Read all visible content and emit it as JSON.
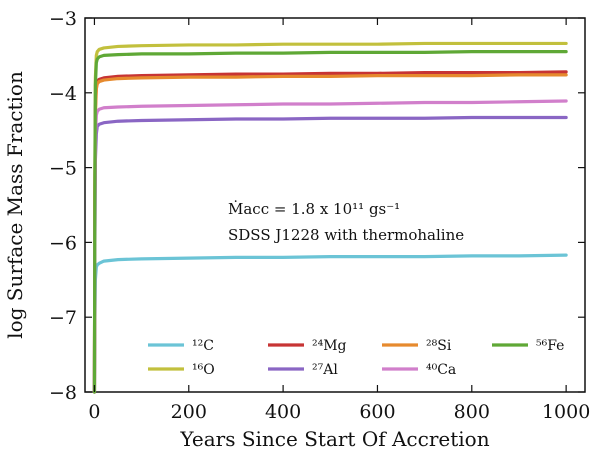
{
  "chart_data": {
    "type": "line",
    "xlabel": "Years Since Start Of Accretion",
    "ylabel": "log Surface Mass Fraction",
    "xlim": [
      -20,
      1040
    ],
    "ylim": [
      -8,
      -3
    ],
    "xticks": [
      0,
      200,
      400,
      600,
      800,
      1000
    ],
    "yticks": [
      -8,
      -7,
      -6,
      -5,
      -4,
      -3
    ],
    "xtick_labels": [
      "0",
      "200",
      "400",
      "600",
      "800",
      "1000"
    ],
    "ytick_labels": [
      "−8",
      "−7",
      "−6",
      "−5",
      "−4",
      "−3"
    ],
    "grid": false,
    "legend_position": "bottom",
    "annotations": [
      "Ṁacc = 1.8 x 10¹¹ gs⁻¹",
      "SDSS J1228 with thermohaline"
    ],
    "x": [
      0,
      1,
      2,
      4,
      6,
      10,
      20,
      50,
      100,
      200,
      300,
      400,
      500,
      600,
      700,
      800,
      900,
      1000
    ],
    "series": [
      {
        "name": "¹²C",
        "color": "#6bc4d6",
        "values": [
          -8.0,
          -7.0,
          -6.5,
          -6.33,
          -6.3,
          -6.28,
          -6.25,
          -6.23,
          -6.22,
          -6.21,
          -6.2,
          -6.2,
          -6.19,
          -6.19,
          -6.19,
          -6.18,
          -6.18,
          -6.17
        ]
      },
      {
        "name": "¹⁶O",
        "color": "#c2c03d",
        "values": [
          -8.0,
          -5.0,
          -3.8,
          -3.5,
          -3.45,
          -3.42,
          -3.4,
          -3.38,
          -3.37,
          -3.36,
          -3.36,
          -3.35,
          -3.35,
          -3.35,
          -3.34,
          -3.34,
          -3.34,
          -3.34
        ]
      },
      {
        "name": "²⁴Mg",
        "color": "#c73434",
        "values": [
          -8.0,
          -5.3,
          -4.2,
          -3.9,
          -3.85,
          -3.82,
          -3.8,
          -3.78,
          -3.77,
          -3.76,
          -3.75,
          -3.75,
          -3.74,
          -3.74,
          -3.73,
          -3.73,
          -3.73,
          -3.72
        ]
      },
      {
        "name": "²⁷Al",
        "color": "#8a66c4",
        "values": [
          -8.0,
          -6.0,
          -4.9,
          -4.55,
          -4.45,
          -4.42,
          -4.4,
          -4.38,
          -4.37,
          -4.36,
          -4.35,
          -4.35,
          -4.34,
          -4.34,
          -4.34,
          -4.33,
          -4.33,
          -4.33
        ]
      },
      {
        "name": "²⁸Si",
        "color": "#e68a2e",
        "values": [
          -8.0,
          -5.4,
          -4.3,
          -3.95,
          -3.88,
          -3.85,
          -3.83,
          -3.81,
          -3.8,
          -3.79,
          -3.79,
          -3.78,
          -3.78,
          -3.77,
          -3.77,
          -3.77,
          -3.76,
          -3.76
        ]
      },
      {
        "name": "⁴⁰Ca",
        "color": "#d17fcb",
        "values": [
          -8.0,
          -5.8,
          -4.6,
          -4.3,
          -4.25,
          -4.22,
          -4.2,
          -4.19,
          -4.18,
          -4.17,
          -4.16,
          -4.15,
          -4.15,
          -4.14,
          -4.13,
          -4.13,
          -4.12,
          -4.11
        ]
      },
      {
        "name": "⁵⁶Fe",
        "color": "#5fa836",
        "values": [
          -8.0,
          -5.1,
          -3.9,
          -3.6,
          -3.55,
          -3.52,
          -3.5,
          -3.49,
          -3.48,
          -3.48,
          -3.47,
          -3.47,
          -3.46,
          -3.46,
          -3.46,
          -3.45,
          -3.45,
          -3.45
        ]
      }
    ]
  }
}
